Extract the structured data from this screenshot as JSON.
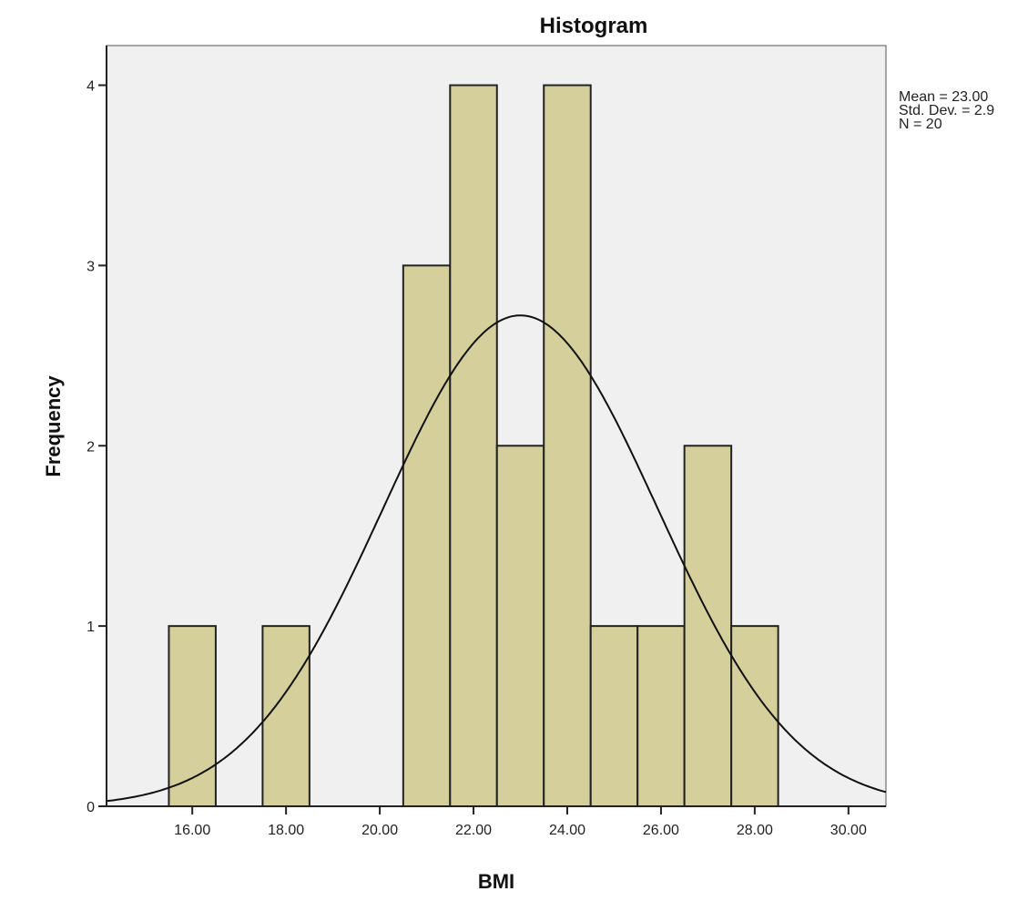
{
  "chart_data": {
    "type": "bar",
    "subtype": "histogram",
    "title": "Histogram",
    "xlabel": "BMI",
    "ylabel": "Frequency",
    "xlim": [
      14.17,
      30.8
    ],
    "ylim": [
      0,
      4.22
    ],
    "x_ticks": [
      16,
      18,
      20,
      22,
      24,
      26,
      28,
      30
    ],
    "x_tick_labels": [
      "16.00",
      "18.00",
      "20.00",
      "22.00",
      "24.00",
      "26.00",
      "28.00",
      "30.00"
    ],
    "y_ticks": [
      0,
      1,
      2,
      3,
      4
    ],
    "y_tick_labels": [
      "0",
      "1",
      "2",
      "3",
      "4"
    ],
    "bin_width": 1,
    "bins": [
      {
        "start": 15.5,
        "end": 16.5,
        "count": 1
      },
      {
        "start": 17.5,
        "end": 18.5,
        "count": 1
      },
      {
        "start": 20.5,
        "end": 21.5,
        "count": 3
      },
      {
        "start": 21.5,
        "end": 22.5,
        "count": 4
      },
      {
        "start": 22.5,
        "end": 23.5,
        "count": 2
      },
      {
        "start": 23.5,
        "end": 24.5,
        "count": 4
      },
      {
        "start": 24.5,
        "end": 25.5,
        "count": 1
      },
      {
        "start": 25.5,
        "end": 26.5,
        "count": 1
      },
      {
        "start": 26.5,
        "end": 27.5,
        "count": 2
      },
      {
        "start": 27.5,
        "end": 28.5,
        "count": 1
      }
    ],
    "normal_curve": {
      "mean": 23.0,
      "sd": 2.93,
      "n": 20
    },
    "stats": [
      "Mean = 23.00",
      "Std. Dev. = 2.9",
      "N = 20"
    ],
    "legend_position": "right",
    "grid": false,
    "colors": {
      "bar": "#d4cf9b",
      "plot_bg": "#f0f0f0",
      "edge": "#222222"
    }
  }
}
